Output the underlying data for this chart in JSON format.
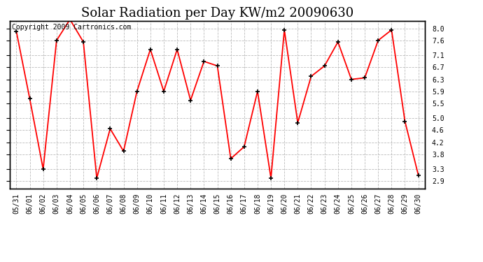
{
  "title": "Solar Radiation per Day KW/m2 20090630",
  "copyright_text": "Copyright 2009 Cartronics.com",
  "dates": [
    "05/31",
    "06/01",
    "06/02",
    "06/03",
    "06/04",
    "06/05",
    "06/06",
    "06/07",
    "06/08",
    "06/09",
    "06/10",
    "06/11",
    "06/12",
    "06/13",
    "06/14",
    "06/15",
    "06/16",
    "06/17",
    "06/18",
    "06/19",
    "06/20",
    "06/21",
    "06/22",
    "06/23",
    "06/24",
    "06/25",
    "06/26",
    "06/27",
    "06/28",
    "06/29",
    "06/30"
  ],
  "values": [
    7.9,
    5.65,
    3.3,
    7.6,
    8.3,
    7.55,
    3.0,
    4.65,
    3.9,
    5.9,
    7.3,
    5.9,
    7.3,
    5.6,
    6.9,
    6.75,
    3.65,
    4.05,
    5.9,
    3.0,
    7.95,
    4.85,
    6.4,
    6.75,
    7.55,
    6.3,
    6.35,
    7.6,
    7.95,
    4.9,
    3.1
  ],
  "line_color": "#ff0000",
  "marker_color": "#000000",
  "bg_color": "#ffffff",
  "grid_color": "#bbbbbb",
  "yticks": [
    2.9,
    3.3,
    3.8,
    4.2,
    4.6,
    5.0,
    5.5,
    5.9,
    6.3,
    6.7,
    7.1,
    7.6,
    8.0
  ],
  "ylim": [
    2.65,
    8.25
  ],
  "title_fontsize": 13,
  "tick_fontsize": 7,
  "copyright_fontsize": 7
}
